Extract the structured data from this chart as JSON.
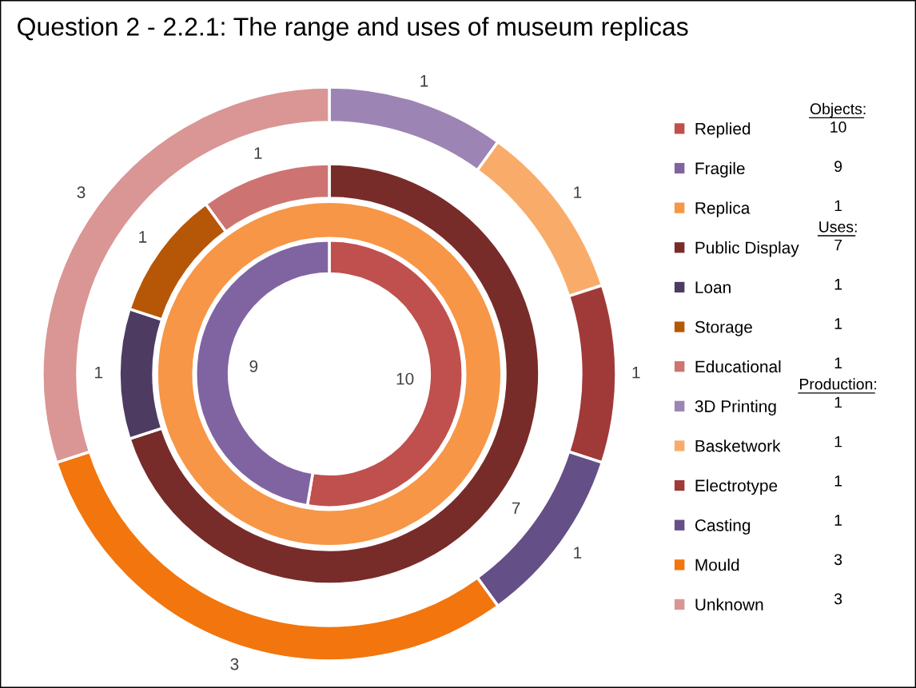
{
  "chart_data": {
    "type": "donut",
    "title": "Question 2 - 2.2.1: The range and uses of museum replicas",
    "annotations": [
      "Objects:",
      "Uses:",
      "Production:"
    ],
    "legend": "right",
    "categories": [
      "Replied",
      "Fragile",
      "Replica",
      "Public Display",
      "Loan",
      "Storage",
      "Educational",
      "3D Printing",
      "Basketwork",
      "Electrotype",
      "Casting",
      "Mould",
      "Unknown"
    ],
    "colors": [
      "#c0504d",
      "#8064a2",
      "#f79646",
      "#772c2a",
      "#4d3b62",
      "#b65708",
      "#cd7371",
      "#9c85b4",
      "#f9ac6a",
      "#a03a38",
      "#654f87",
      "#f2750d",
      "#d99694"
    ],
    "series": [
      {
        "values": [
          10,
          9,
          null,
          null,
          null,
          null,
          null,
          null,
          null,
          null,
          null,
          null,
          null
        ],
        "value_labels": [
          "10",
          "9",
          null,
          null,
          null,
          null,
          null,
          null,
          null,
          null,
          null,
          null,
          null
        ]
      },
      {
        "values": [
          null,
          null,
          1,
          null,
          null,
          null,
          null,
          null,
          null,
          null,
          null,
          null,
          null
        ],
        "value_labels": [
          null,
          null,
          "1",
          null,
          null,
          null,
          null,
          null,
          null,
          null,
          null,
          null,
          null
        ]
      },
      {
        "values": [
          null,
          null,
          null,
          7,
          1,
          1,
          1,
          null,
          null,
          null,
          null,
          null,
          null
        ],
        "value_labels": [
          null,
          null,
          null,
          "7",
          "1",
          "1",
          "1",
          null,
          null,
          null,
          null,
          null,
          null
        ]
      },
      {
        "values": [
          null,
          null,
          null,
          null,
          null,
          null,
          null,
          1,
          1,
          1,
          1,
          3,
          3
        ],
        "value_labels": [
          null,
          null,
          null,
          null,
          null,
          null,
          null,
          "1",
          "1",
          "1",
          "1",
          "3",
          "3"
        ]
      }
    ]
  }
}
